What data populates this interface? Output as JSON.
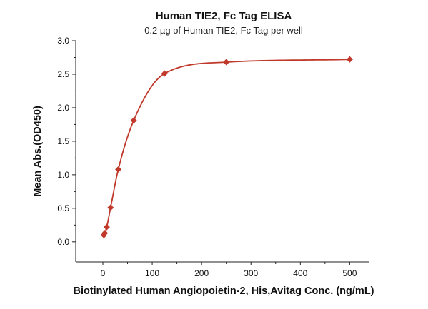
{
  "chart_data": {
    "type": "scatter",
    "title": "Human TIE2, Fc Tag ELISA",
    "subtitle": "0.2 µg of Human TIE2, Fc Tag per well",
    "xlabel": "Biotinylated Human Angiopoietin-2, His,Avitag Conc. (ng/mL)",
    "ylabel": "Mean Abs.(OD450)",
    "xlim": [
      -55,
      540
    ],
    "ylim": [
      -0.3,
      3.0
    ],
    "xticks": [
      0,
      100,
      200,
      300,
      400,
      500
    ],
    "yticks": [
      0.0,
      0.5,
      1.0,
      1.5,
      2.0,
      2.5,
      3.0
    ],
    "xtick_labels": [
      "0",
      "100",
      "200",
      "300",
      "400",
      "500"
    ],
    "ytick_labels": [
      "0.0",
      "0.5",
      "1.0",
      "1.5",
      "2.0",
      "2.5",
      "3.0"
    ],
    "grid": false,
    "marker": "diamond",
    "colors": {
      "series": "#c0392b",
      "axis": "#222222"
    },
    "series": [
      {
        "x": [
          1.95,
          3.9,
          7.8,
          15.6,
          31.25,
          62.5,
          125,
          250,
          500
        ],
        "y": [
          0.1,
          0.13,
          0.22,
          0.51,
          1.08,
          1.81,
          2.51,
          2.68,
          2.72
        ],
        "fit": "4PL"
      }
    ]
  }
}
